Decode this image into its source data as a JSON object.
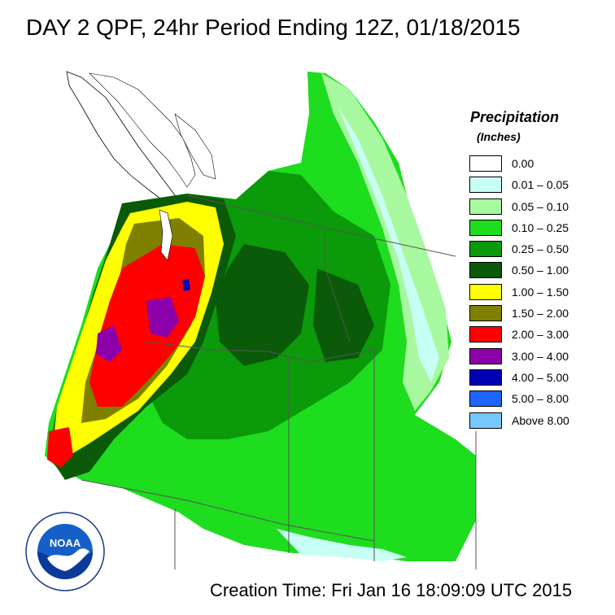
{
  "title": "DAY 2 QPF, 24hr Period Ending 12Z, 01/18/2015",
  "legend": {
    "title": "Precipitation",
    "subtitle": "(Inches)",
    "items": [
      {
        "label": "0.00",
        "color": "#ffffff"
      },
      {
        "label": "0.01 – 0.05",
        "color": "#c8fff4"
      },
      {
        "label": "0.05 – 0.10",
        "color": "#a8f8a0"
      },
      {
        "label": "0.10 – 0.25",
        "color": "#1edc1e"
      },
      {
        "label": "0.25 – 0.50",
        "color": "#0a9a0a"
      },
      {
        "label": "0.50 – 1.00",
        "color": "#0a5a0a"
      },
      {
        "label": "1.00 – 1.50",
        "color": "#ffff00"
      },
      {
        "label": "1.50 – 2.00",
        "color": "#808000"
      },
      {
        "label": "2.00 – 3.00",
        "color": "#ff0000"
      },
      {
        "label": "3.00 – 4.00",
        "color": "#8c00aa"
      },
      {
        "label": "4.00 – 5.00",
        "color": "#0000b4"
      },
      {
        "label": "5.00 – 8.00",
        "color": "#1e64ff"
      },
      {
        "label": "Above 8.00",
        "color": "#78c8ff"
      }
    ]
  },
  "creation_time": "Creation Time: Fri Jan 16 18:09:09 UTC 2015",
  "logo": {
    "text": "NOAA",
    "ring_text": "NATIONAL OCEANIC AND ATMOSPHERIC ADMINISTRATION · U.S. DEPARTMENT OF COMMERCE"
  }
}
